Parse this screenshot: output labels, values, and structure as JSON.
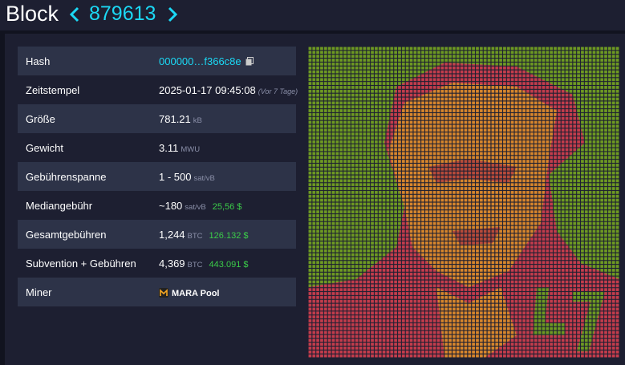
{
  "header": {
    "title": "Block",
    "height": "879613"
  },
  "table": {
    "rows": [
      {
        "label": "Hash",
        "value": "000000…f366c8e"
      },
      {
        "label": "Zeitstempel",
        "value": "2025-01-17 09:45:08",
        "note": "(Vor 7 Tage)"
      },
      {
        "label": "Größe",
        "value": "781.21",
        "unit": "kB"
      },
      {
        "label": "Gewicht",
        "value": "3.11",
        "unit": "MWU"
      },
      {
        "label": "Gebührenspanne",
        "value": "1 - 500",
        "unit": "sat/vB"
      },
      {
        "label": "Mediangebühr",
        "value": "~180",
        "unit": "sat/vB",
        "fiat": "25,56 $"
      },
      {
        "label": "Gesamtgebühren",
        "value": "1,244",
        "unit": "BTC",
        "fiat": "126.132 $"
      },
      {
        "label": "Subvention + Gebühren",
        "value": "4,369",
        "unit": "BTC",
        "fiat": "443.091 $"
      },
      {
        "label": "Miner",
        "value": "MARA Pool"
      }
    ]
  }
}
